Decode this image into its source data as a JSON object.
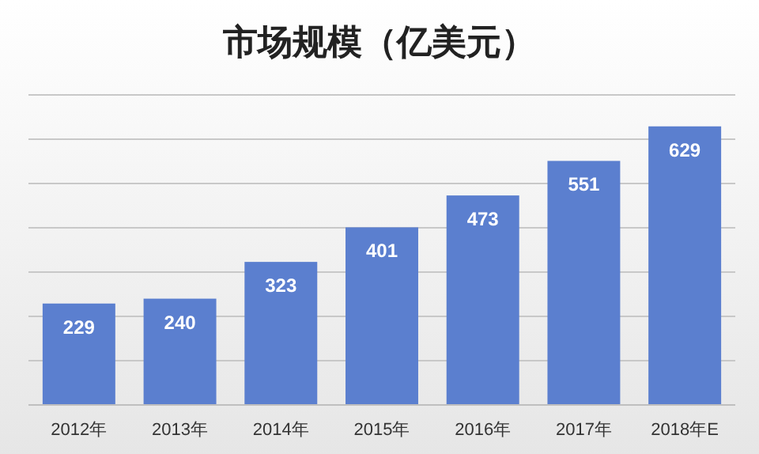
{
  "chart_data": {
    "type": "bar",
    "title": "市场规模（亿美元）",
    "categories": [
      "2012年",
      "2013年",
      "2014年",
      "2015年",
      "2016年",
      "2017年",
      "2018年E"
    ],
    "values": [
      229,
      240,
      323,
      401,
      473,
      551,
      629
    ],
    "color": "#5b7fcf",
    "ylim": [
      0,
      700
    ],
    "yticks": [
      {
        "value": 0,
        "label": null
      },
      {
        "value": 100,
        "label": null
      },
      {
        "value": 200,
        "label": null
      },
      {
        "value": 300,
        "label": null
      },
      {
        "value": 400,
        "label": null
      },
      {
        "value": 500,
        "label": null
      },
      {
        "value": 600,
        "label": null
      },
      {
        "value": 700,
        "label": null
      }
    ],
    "grid": "y",
    "data_labels": true
  }
}
